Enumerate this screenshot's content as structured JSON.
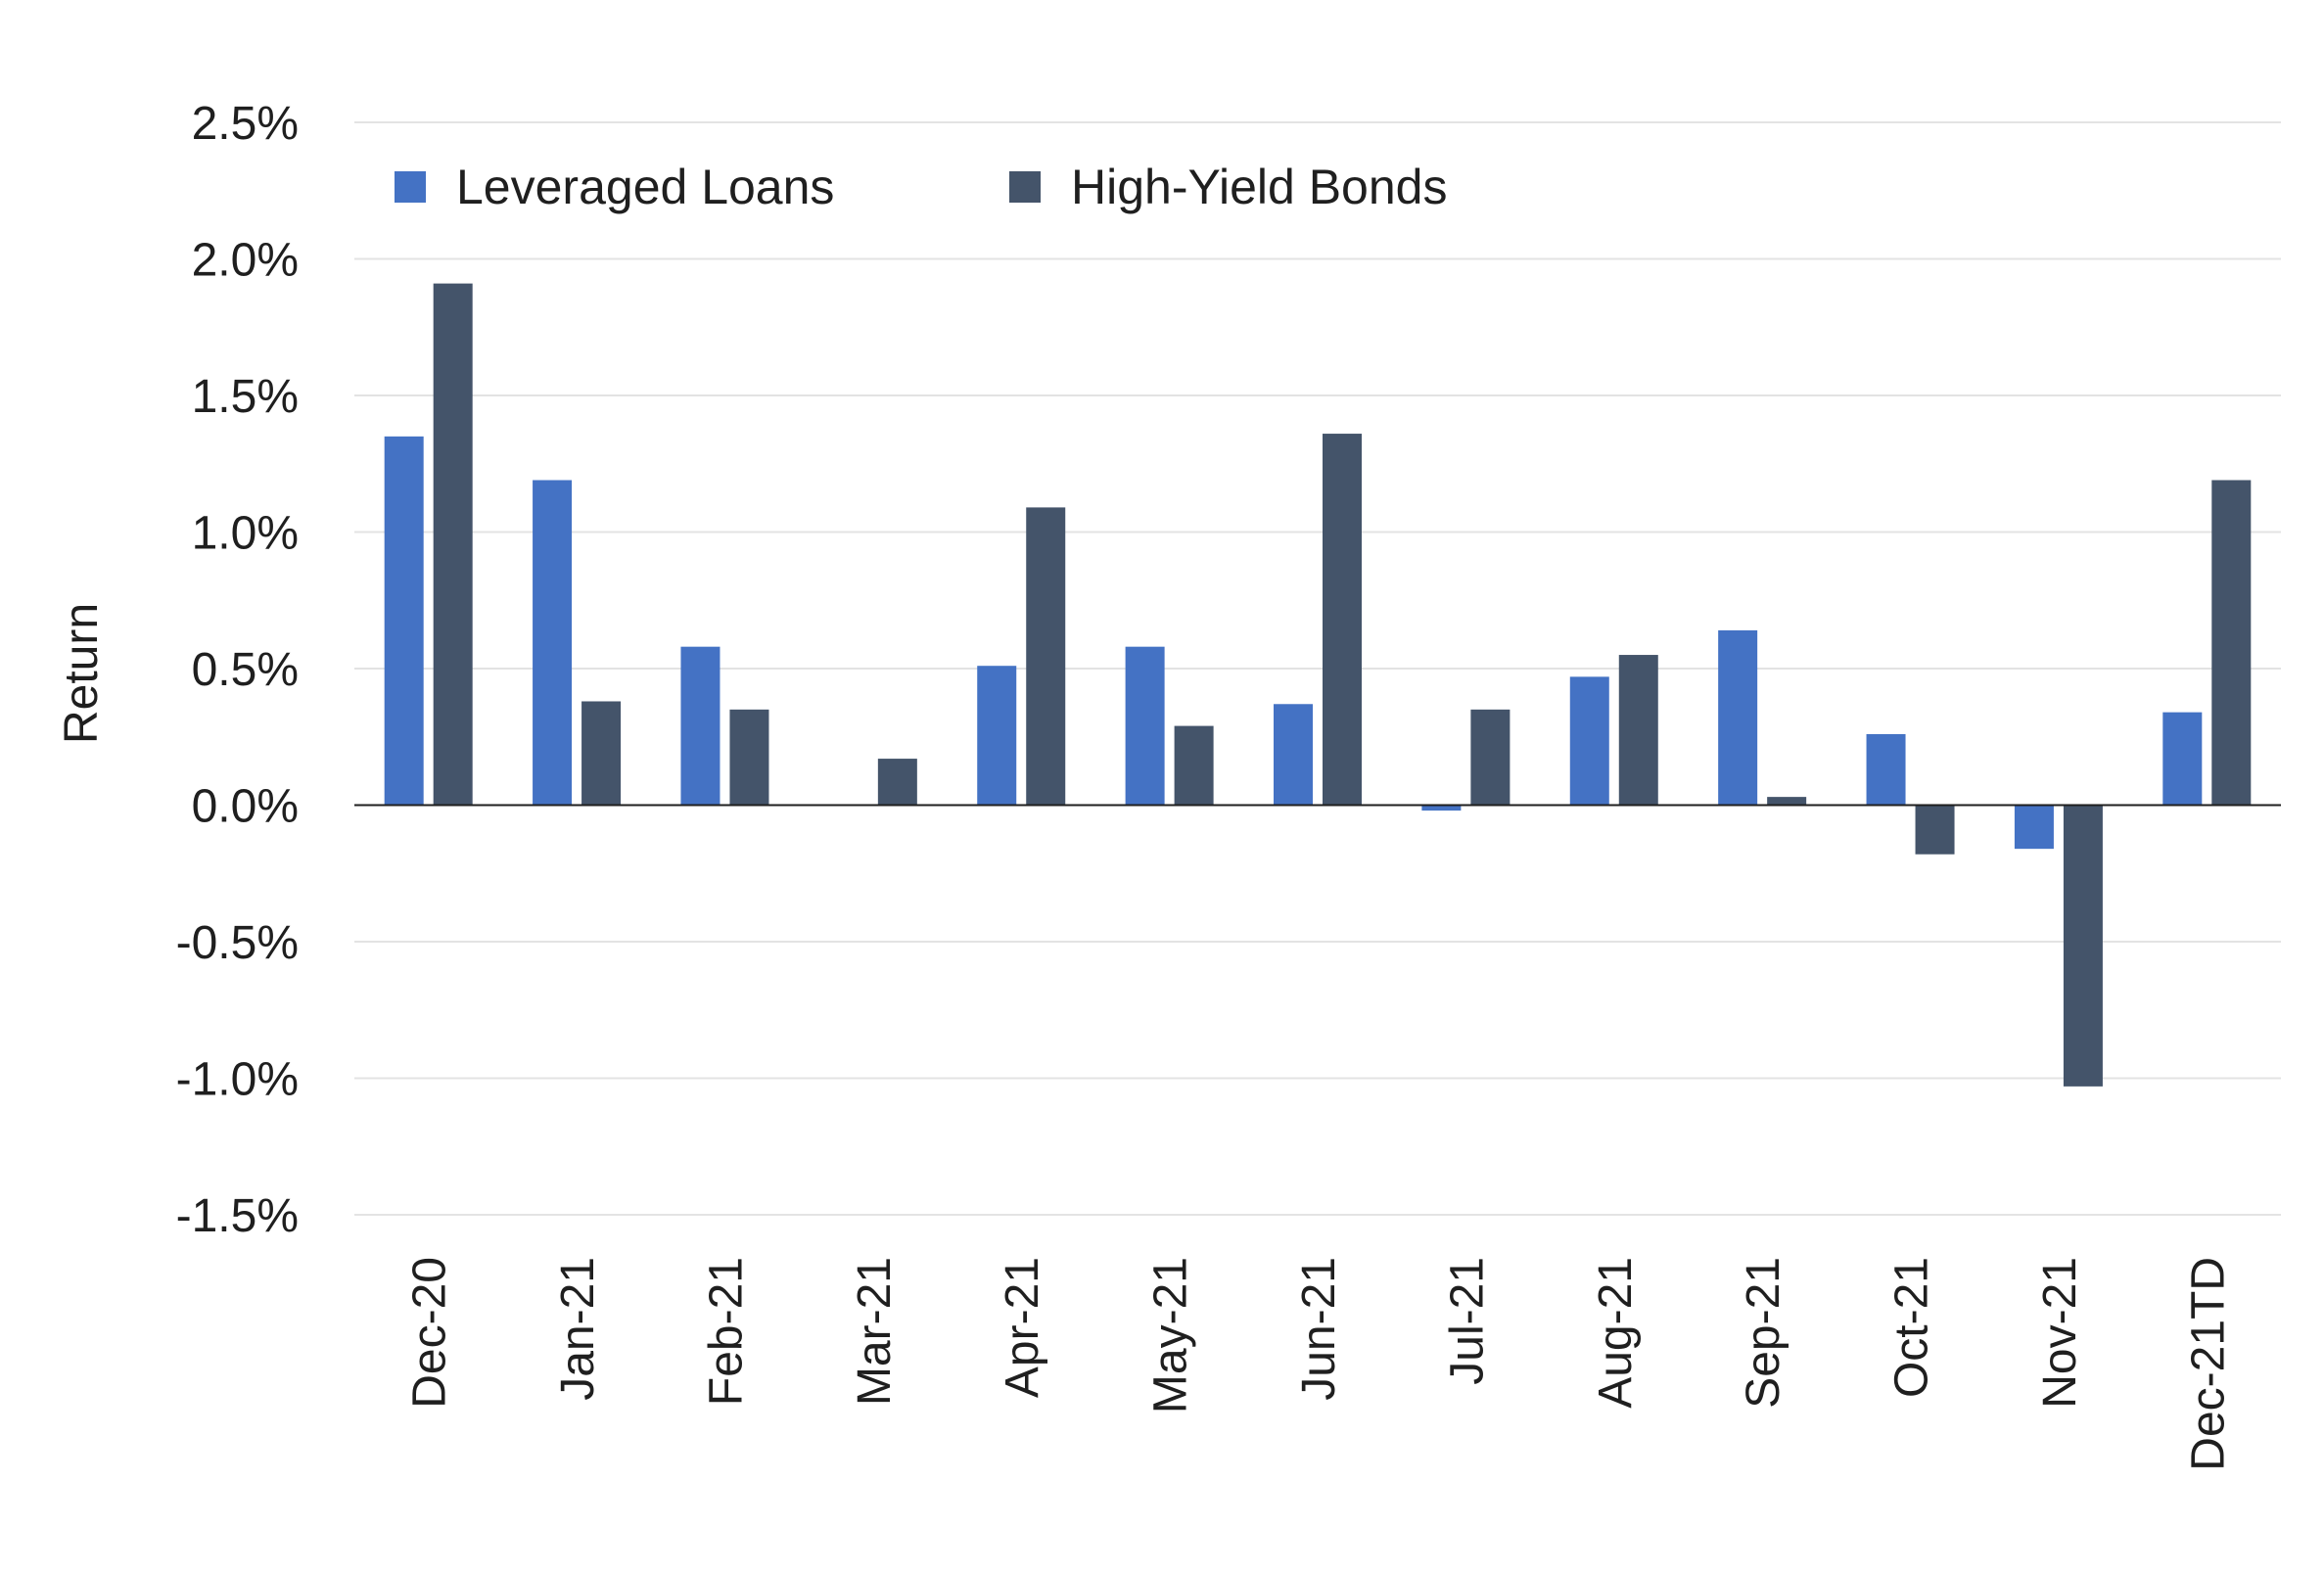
{
  "chart_data": {
    "type": "bar",
    "title": "",
    "xlabel": "",
    "ylabel": "Return",
    "ylim": [
      -1.5,
      2.5
    ],
    "ytick_step": 0.5,
    "ytick_labels": [
      "2.5%",
      "2.0%",
      "1.5%",
      "1.0%",
      "0.5%",
      "0.0%",
      "-0.5%",
      "-1.0%",
      "-1.5%"
    ],
    "grid": "horizontal",
    "legend_position": "top-left",
    "categories": [
      "Dec-20",
      "Jan-21",
      "Feb-21",
      "Mar-21",
      "Apr-21",
      "May-21",
      "Jun-21",
      "Jul-21",
      "Aug-21",
      "Sep-21",
      "Oct-21",
      "Nov-21",
      "Dec-21TD"
    ],
    "series": [
      {
        "name": "Leveraged Loans",
        "color": "#4472C4",
        "values": [
          1.35,
          1.19,
          0.58,
          0.0,
          0.51,
          0.58,
          0.37,
          -0.02,
          0.47,
          0.64,
          0.26,
          -0.16,
          0.34
        ]
      },
      {
        "name": "High-Yield Bonds",
        "color": "#44546A",
        "values": [
          1.91,
          0.38,
          0.35,
          0.17,
          1.09,
          0.29,
          1.36,
          0.35,
          0.55,
          0.03,
          -0.18,
          -1.03,
          1.19
        ]
      }
    ]
  }
}
